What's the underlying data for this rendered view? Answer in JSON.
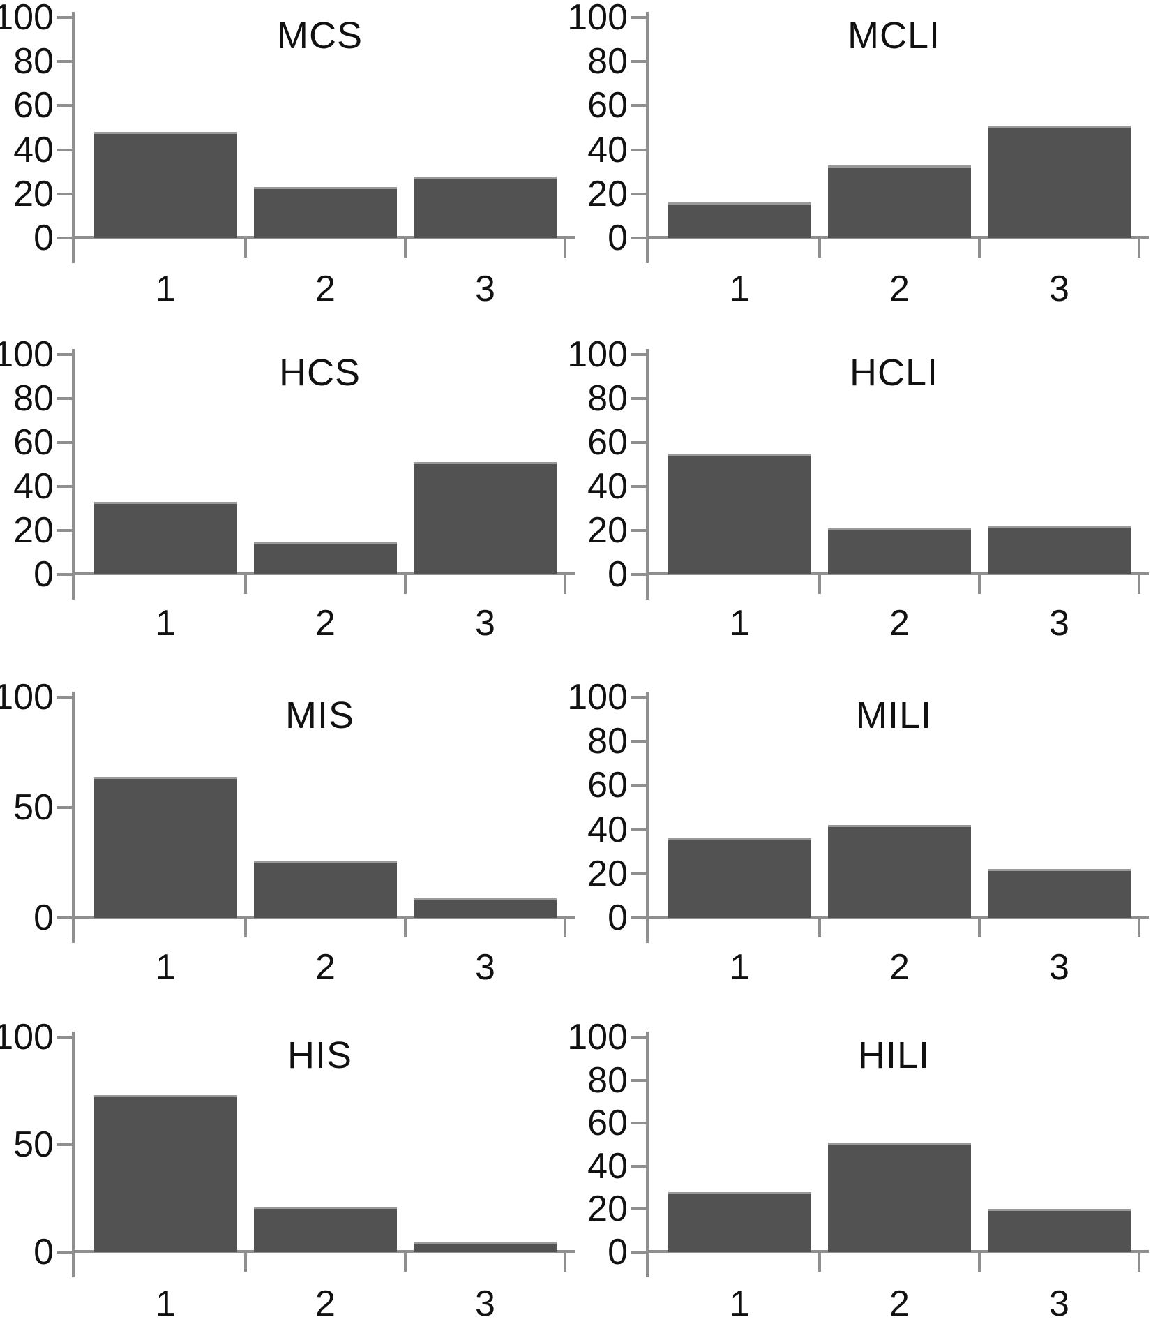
{
  "page": {
    "background": "#ffffff",
    "description": "Grid of eight bar charts"
  },
  "colors": {
    "bar_fill": "#525252",
    "bar_top_edge": "#9a9a9a",
    "axis": "#8f8f8f",
    "text": "#111111"
  },
  "chart_data": [
    {
      "type": "bar",
      "title": "MCS",
      "categories": [
        "1",
        "2",
        "3"
      ],
      "values": [
        48,
        23,
        28
      ],
      "ylim": [
        0,
        100
      ],
      "yticks": [
        0,
        20,
        40,
        60,
        80,
        100
      ],
      "xlabel": "",
      "ylabel": "",
      "grid": false,
      "legend": "none",
      "grid_row": 0,
      "grid_col": 0
    },
    {
      "type": "bar",
      "title": "MCLI",
      "categories": [
        "1",
        "2",
        "3"
      ],
      "values": [
        16,
        33,
        51
      ],
      "ylim": [
        0,
        100
      ],
      "yticks": [
        0,
        20,
        40,
        60,
        80,
        100
      ],
      "xlabel": "",
      "ylabel": "",
      "grid": false,
      "legend": "none",
      "grid_row": 0,
      "grid_col": 1
    },
    {
      "type": "bar",
      "title": "HCS",
      "categories": [
        "1",
        "2",
        "3"
      ],
      "values": [
        33,
        15,
        51
      ],
      "ylim": [
        0,
        100
      ],
      "yticks": [
        0,
        20,
        40,
        60,
        80,
        100
      ],
      "xlabel": "",
      "ylabel": "",
      "grid": false,
      "legend": "none",
      "grid_row": 1,
      "grid_col": 0
    },
    {
      "type": "bar",
      "title": "HCLI",
      "categories": [
        "1",
        "2",
        "3"
      ],
      "values": [
        55,
        21,
        22
      ],
      "ylim": [
        0,
        100
      ],
      "yticks": [
        0,
        20,
        40,
        60,
        80,
        100
      ],
      "xlabel": "",
      "ylabel": "",
      "grid": false,
      "legend": "none",
      "grid_row": 1,
      "grid_col": 1
    },
    {
      "type": "bar",
      "title": "MIS",
      "categories": [
        "1",
        "2",
        "3"
      ],
      "values": [
        64,
        26,
        9
      ],
      "ylim": [
        0,
        100
      ],
      "yticks": [
        0,
        50,
        100
      ],
      "xlabel": "",
      "ylabel": "",
      "grid": false,
      "legend": "none",
      "grid_row": 2,
      "grid_col": 0
    },
    {
      "type": "bar",
      "title": "MILI",
      "categories": [
        "1",
        "2",
        "3"
      ],
      "values": [
        36,
        42,
        22
      ],
      "ylim": [
        0,
        100
      ],
      "yticks": [
        0,
        20,
        40,
        60,
        80,
        100
      ],
      "xlabel": "",
      "ylabel": "",
      "grid": false,
      "legend": "none",
      "grid_row": 2,
      "grid_col": 1
    },
    {
      "type": "bar",
      "title": "HIS",
      "categories": [
        "1",
        "2",
        "3"
      ],
      "values": [
        73,
        21,
        5
      ],
      "ylim": [
        0,
        100
      ],
      "yticks": [
        0,
        50,
        100
      ],
      "xlabel": "",
      "ylabel": "",
      "grid": false,
      "legend": "none",
      "grid_row": 3,
      "grid_col": 0
    },
    {
      "type": "bar",
      "title": "HILI",
      "categories": [
        "1",
        "2",
        "3"
      ],
      "values": [
        28,
        51,
        20
      ],
      "ylim": [
        0,
        100
      ],
      "yticks": [
        0,
        20,
        40,
        60,
        80,
        100
      ],
      "xlabel": "",
      "ylabel": "",
      "grid": false,
      "legend": "none",
      "grid_row": 3,
      "grid_col": 1
    }
  ]
}
